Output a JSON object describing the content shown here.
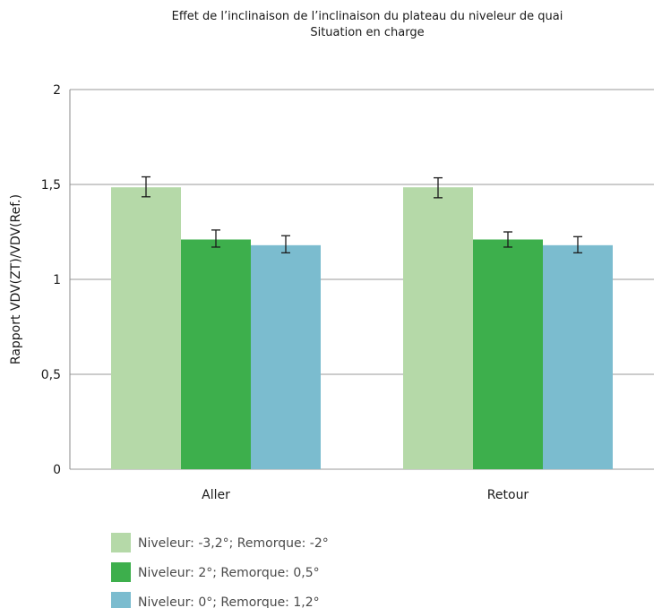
{
  "chart_data": {
    "type": "bar",
    "title": "Effet de l’inclinaison de l’inclinaison du plateau du niveleur de quai",
    "subtitle": "Situation en charge",
    "xlabel": "",
    "ylabel": "Rapport VDV(ZT)/VDV(Ref.)",
    "ylim": [
      0,
      2
    ],
    "yticks": [
      0,
      0.5,
      1,
      1.5,
      2
    ],
    "ytick_labels": [
      "0",
      "0,5",
      "1",
      "1,5",
      "2"
    ],
    "grid": true,
    "legend_position": "bottom-left",
    "categories": [
      "Aller",
      "Retour"
    ],
    "series": [
      {
        "name": "Niveleur: -3,2°; Remorque: -2°",
        "color": "#b5d9a8",
        "values": [
          1.485,
          1.485
        ],
        "error_low": [
          1.435,
          1.43
        ],
        "error_high": [
          1.54,
          1.535
        ]
      },
      {
        "name": "Niveleur: 2°; Remorque: 0,5°",
        "color": "#3daf4c",
        "values": [
          1.21,
          1.21
        ],
        "error_low": [
          1.17,
          1.17
        ],
        "error_high": [
          1.26,
          1.25
        ]
      },
      {
        "name": "Niveleur: 0°; Remorque: 1,2°",
        "color": "#7bbccf",
        "values": [
          1.18,
          1.18
        ],
        "error_low": [
          1.14,
          1.14
        ],
        "error_high": [
          1.23,
          1.225
        ]
      }
    ]
  }
}
